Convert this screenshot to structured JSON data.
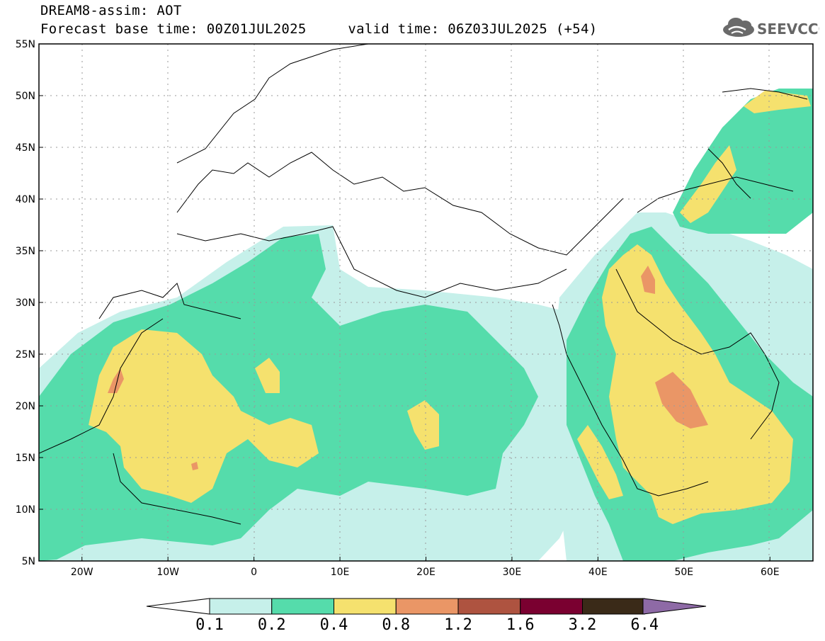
{
  "title": {
    "line1": "DREAM8-assim: AOT",
    "line2": "Forecast base time: 00Z01JUL2025     valid time: 06Z03JUL2025 (+54)"
  },
  "logo": {
    "text": "SEEVCCC",
    "icon": "cloud-icon"
  },
  "axes": {
    "lat_labels": [
      "55N",
      "50N",
      "45N",
      "40N",
      "35N",
      "30N",
      "25N",
      "20N",
      "15N",
      "10N",
      "5N"
    ],
    "lon_labels": [
      "20W",
      "10W",
      "0",
      "10E",
      "20E",
      "30E",
      "40E",
      "50E",
      "60E"
    ],
    "lat_range": [
      5,
      55
    ],
    "lon_range": [
      -25,
      65
    ],
    "grid": "dotted"
  },
  "colorbar": {
    "levels": [
      "0.1",
      "0.2",
      "0.4",
      "0.8",
      "1.2",
      "1.6",
      "3.2",
      "6.4"
    ],
    "colors": [
      "#ffffff",
      "#c6f0ea",
      "#55dcab",
      "#f5e16e",
      "#ea9666",
      "#ae5340",
      "#7a0030",
      "#3a2a18",
      "#8e6aa6"
    ]
  },
  "field_colors": {
    "c1": "#c6f0ea",
    "c2": "#55dcab",
    "c3": "#f5e16e",
    "c4": "#ea9666"
  }
}
